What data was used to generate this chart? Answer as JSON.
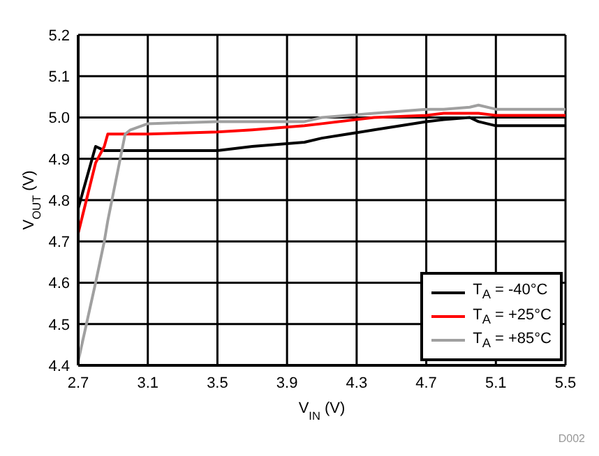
{
  "chart_data": {
    "type": "line",
    "xlabel": "V$_{IN}$ (V)",
    "ylabel": "V$_{OUT}$ (V)",
    "xlim": [
      2.7,
      5.5
    ],
    "xticks": [
      2.7,
      3.1,
      3.5,
      3.9,
      4.3,
      4.7,
      5.1,
      5.5
    ],
    "ylim": [
      4.4,
      5.2
    ],
    "yticks": [
      4.4,
      4.5,
      4.6,
      4.7,
      4.8,
      4.9,
      {
        "value": 5,
        "label": "5.0"
      },
      5.1,
      5.2
    ],
    "grid": true,
    "legend": "bottom right",
    "marker": "none",
    "line_style": "solid",
    "annotations": [
      "D002"
    ],
    "x": [
      2.7,
      2.8,
      2.85,
      2.87,
      2.97,
      3.0,
      3.1,
      3.5,
      3.7,
      4.0,
      4.1,
      4.4,
      4.7,
      4.8,
      4.95,
      5.0,
      5.1,
      5.5
    ],
    "series": [
      {
        "name": "T$_{A}$ = -40°C",
        "color": "#000000",
        "values": [
          4.78,
          4.93,
          4.92,
          4.92,
          4.92,
          4.92,
          4.92,
          4.92,
          4.93,
          4.94,
          4.95,
          4.97,
          4.99,
          4.995,
          5.0,
          4.99,
          4.98,
          4.98
        ]
      },
      {
        "name": "T$_{A}$ = +25°C",
        "color": "#ff0000",
        "values": [
          4.72,
          4.89,
          4.93,
          4.96,
          4.96,
          4.96,
          4.96,
          4.965,
          4.97,
          4.98,
          4.985,
          5.0,
          5.005,
          5.01,
          5.01,
          5.01,
          5.005,
          5.005
        ]
      },
      {
        "name": "T$_{A}$ = +85°C",
        "color": "#a0a0a0",
        "values": [
          4.41,
          4.6,
          4.7,
          4.75,
          4.96,
          4.97,
          4.985,
          4.99,
          4.99,
          4.99,
          5.0,
          5.01,
          5.02,
          5.02,
          5.025,
          5.03,
          5.02,
          5.02
        ]
      }
    ]
  }
}
